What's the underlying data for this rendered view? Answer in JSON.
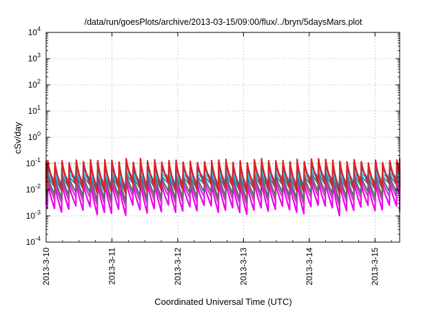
{
  "chart_data": {
    "type": "line",
    "title": "/data/run/goesPlots/archive/2013-03-15/09:00/flux/../bryn/5daysMars.plot",
    "xlabel": "Coordinated Universal Time (UTC)",
    "ylabel": "cSv/day",
    "y_scale": "log",
    "ylim": [
      0.0001,
      10000
    ],
    "xlim": [
      "2013-03-10 00:00",
      "2013-03-15 09:00"
    ],
    "grid": true,
    "legend": "none",
    "yticks": [
      {
        "base": "10",
        "exp": "-4",
        "value": 0.0001
      },
      {
        "base": "10",
        "exp": "-3",
        "value": 0.001
      },
      {
        "base": "10",
        "exp": "-2",
        "value": 0.01
      },
      {
        "base": "10",
        "exp": "-1",
        "value": 0.1
      },
      {
        "base": "10",
        "exp": "0",
        "value": 1
      },
      {
        "base": "10",
        "exp": "1",
        "value": 10
      },
      {
        "base": "10",
        "exp": "2",
        "value": 100
      },
      {
        "base": "10",
        "exp": "3",
        "value": 1000
      },
      {
        "base": "10",
        "exp": "4",
        "value": 10000
      }
    ],
    "xticks": [
      "2013-3-10",
      "2013-3-11",
      "2013-3-12",
      "2013-3-13",
      "2013-3-14",
      "2013-3-15"
    ],
    "reference_line": {
      "value": 0.1,
      "color": "#e05050",
      "style": "dotted"
    },
    "pattern": {
      "description_units": "sawtooth dose-rate series, each cycle rising sharply then decaying",
      "cycle_hours": 2.6,
      "phase_hours": 0.6
    },
    "series": [
      {
        "color": "#dd2222",
        "peak": 0.13,
        "trough": 0.012
      },
      {
        "color": "#2255cc",
        "peak": 0.1,
        "trough": 0.015
      },
      {
        "color": "#2299ff",
        "peak": 0.075,
        "trough": 0.02
      },
      {
        "color": "#33cccc",
        "peak": 0.05,
        "trough": 0.018
      },
      {
        "color": "#3388bb",
        "peak": 0.04,
        "trough": 0.012
      },
      {
        "color": "#666666",
        "peak": 0.035,
        "trough": 0.006
      },
      {
        "color": "#cc33cc",
        "peak": 0.025,
        "trough": 0.004
      },
      {
        "color": "#ee00ee",
        "peak": 0.018,
        "trough": 0.0018
      }
    ]
  }
}
